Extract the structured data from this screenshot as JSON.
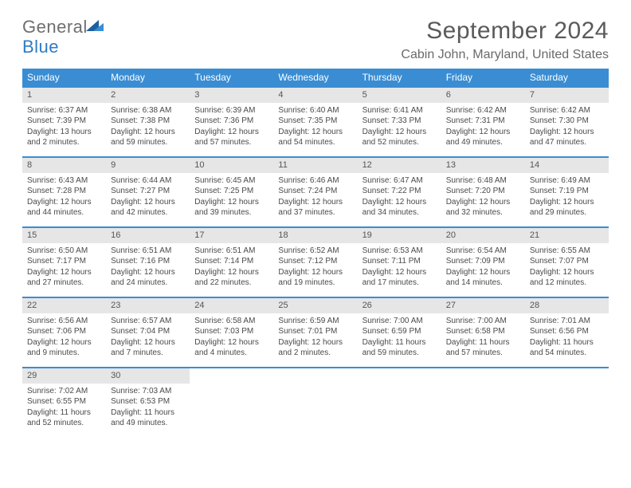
{
  "logo": {
    "text1": "General",
    "text2": "Blue"
  },
  "title": "September 2024",
  "location": "Cabin John, Maryland, United States",
  "colors": {
    "accent": "#3a8dd3",
    "logo_blue": "#2f7bc4",
    "daybar": "#e6e6e6",
    "text": "#4a4a4a",
    "bg": "#ffffff"
  },
  "weekdays": [
    "Sunday",
    "Monday",
    "Tuesday",
    "Wednesday",
    "Thursday",
    "Friday",
    "Saturday"
  ],
  "weeks": [
    [
      {
        "n": "1",
        "sr": "6:37 AM",
        "ss": "7:39 PM",
        "dl": "13 hours and 2 minutes."
      },
      {
        "n": "2",
        "sr": "6:38 AM",
        "ss": "7:38 PM",
        "dl": "12 hours and 59 minutes."
      },
      {
        "n": "3",
        "sr": "6:39 AM",
        "ss": "7:36 PM",
        "dl": "12 hours and 57 minutes."
      },
      {
        "n": "4",
        "sr": "6:40 AM",
        "ss": "7:35 PM",
        "dl": "12 hours and 54 minutes."
      },
      {
        "n": "5",
        "sr": "6:41 AM",
        "ss": "7:33 PM",
        "dl": "12 hours and 52 minutes."
      },
      {
        "n": "6",
        "sr": "6:42 AM",
        "ss": "7:31 PM",
        "dl": "12 hours and 49 minutes."
      },
      {
        "n": "7",
        "sr": "6:42 AM",
        "ss": "7:30 PM",
        "dl": "12 hours and 47 minutes."
      }
    ],
    [
      {
        "n": "8",
        "sr": "6:43 AM",
        "ss": "7:28 PM",
        "dl": "12 hours and 44 minutes."
      },
      {
        "n": "9",
        "sr": "6:44 AM",
        "ss": "7:27 PM",
        "dl": "12 hours and 42 minutes."
      },
      {
        "n": "10",
        "sr": "6:45 AM",
        "ss": "7:25 PM",
        "dl": "12 hours and 39 minutes."
      },
      {
        "n": "11",
        "sr": "6:46 AM",
        "ss": "7:24 PM",
        "dl": "12 hours and 37 minutes."
      },
      {
        "n": "12",
        "sr": "6:47 AM",
        "ss": "7:22 PM",
        "dl": "12 hours and 34 minutes."
      },
      {
        "n": "13",
        "sr": "6:48 AM",
        "ss": "7:20 PM",
        "dl": "12 hours and 32 minutes."
      },
      {
        "n": "14",
        "sr": "6:49 AM",
        "ss": "7:19 PM",
        "dl": "12 hours and 29 minutes."
      }
    ],
    [
      {
        "n": "15",
        "sr": "6:50 AM",
        "ss": "7:17 PM",
        "dl": "12 hours and 27 minutes."
      },
      {
        "n": "16",
        "sr": "6:51 AM",
        "ss": "7:16 PM",
        "dl": "12 hours and 24 minutes."
      },
      {
        "n": "17",
        "sr": "6:51 AM",
        "ss": "7:14 PM",
        "dl": "12 hours and 22 minutes."
      },
      {
        "n": "18",
        "sr": "6:52 AM",
        "ss": "7:12 PM",
        "dl": "12 hours and 19 minutes."
      },
      {
        "n": "19",
        "sr": "6:53 AM",
        "ss": "7:11 PM",
        "dl": "12 hours and 17 minutes."
      },
      {
        "n": "20",
        "sr": "6:54 AM",
        "ss": "7:09 PM",
        "dl": "12 hours and 14 minutes."
      },
      {
        "n": "21",
        "sr": "6:55 AM",
        "ss": "7:07 PM",
        "dl": "12 hours and 12 minutes."
      }
    ],
    [
      {
        "n": "22",
        "sr": "6:56 AM",
        "ss": "7:06 PM",
        "dl": "12 hours and 9 minutes."
      },
      {
        "n": "23",
        "sr": "6:57 AM",
        "ss": "7:04 PM",
        "dl": "12 hours and 7 minutes."
      },
      {
        "n": "24",
        "sr": "6:58 AM",
        "ss": "7:03 PM",
        "dl": "12 hours and 4 minutes."
      },
      {
        "n": "25",
        "sr": "6:59 AM",
        "ss": "7:01 PM",
        "dl": "12 hours and 2 minutes."
      },
      {
        "n": "26",
        "sr": "7:00 AM",
        "ss": "6:59 PM",
        "dl": "11 hours and 59 minutes."
      },
      {
        "n": "27",
        "sr": "7:00 AM",
        "ss": "6:58 PM",
        "dl": "11 hours and 57 minutes."
      },
      {
        "n": "28",
        "sr": "7:01 AM",
        "ss": "6:56 PM",
        "dl": "11 hours and 54 minutes."
      }
    ],
    [
      {
        "n": "29",
        "sr": "7:02 AM",
        "ss": "6:55 PM",
        "dl": "11 hours and 52 minutes."
      },
      {
        "n": "30",
        "sr": "7:03 AM",
        "ss": "6:53 PM",
        "dl": "11 hours and 49 minutes."
      },
      null,
      null,
      null,
      null,
      null
    ]
  ],
  "labels": {
    "sunrise": "Sunrise: ",
    "sunset": "Sunset: ",
    "daylight": "Daylight: "
  }
}
